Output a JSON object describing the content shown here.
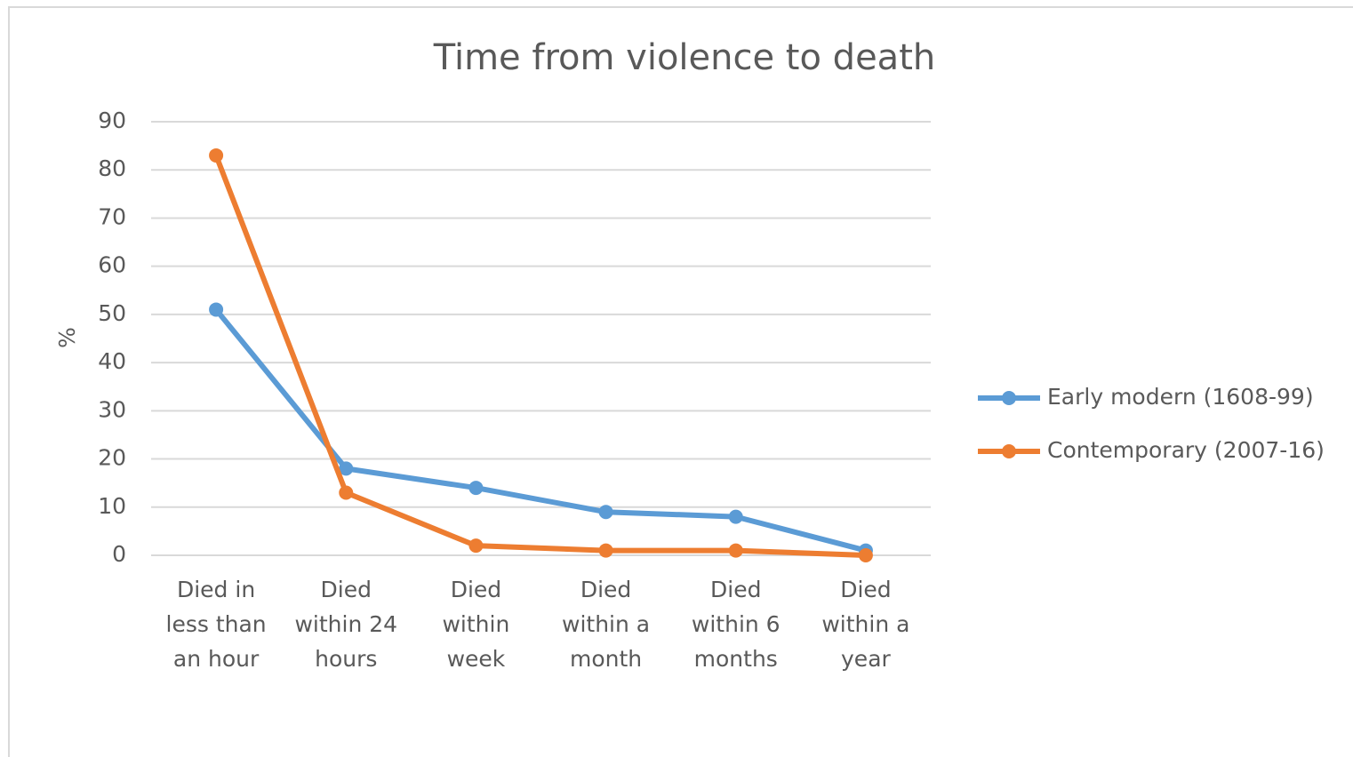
{
  "chart_data": {
    "type": "line",
    "title": "Time from violence to death",
    "y_label": "%",
    "categories": [
      "Died in less than an hour",
      "Died within 24 hours",
      "Died within week",
      "Died within a month",
      "Died within 6 months",
      "Died within a year"
    ],
    "series": [
      {
        "name": "Early modern (1608-99)",
        "color": "#5b9bd5",
        "values": [
          51,
          18,
          14,
          9,
          8,
          1
        ]
      },
      {
        "name": "Contemporary (2007-16)",
        "color": "#ed7d31",
        "values": [
          83,
          13,
          2,
          1,
          1,
          0
        ]
      }
    ],
    "ylim": [
      0,
      90
    ],
    "yticks": [
      0,
      10,
      20,
      30,
      40,
      50,
      60,
      70,
      80,
      90
    ],
    "grid": true,
    "legend": "right"
  }
}
